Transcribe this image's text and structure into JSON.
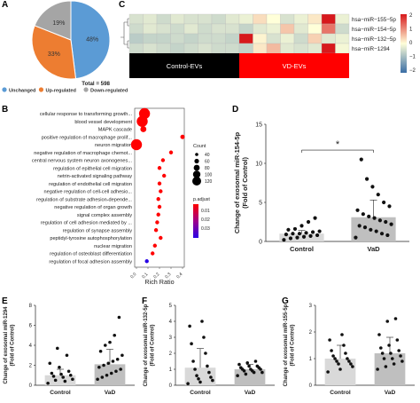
{
  "panels": {
    "A": "A",
    "B": "B",
    "C": "C",
    "D": "D",
    "E": "E",
    "F": "F",
    "G": "G"
  },
  "chart_data": [
    {
      "panel": "A",
      "type": "pie",
      "slices": [
        {
          "label": "Unchanged",
          "value": 48,
          "display": "48%",
          "color": "#5b9bd5"
        },
        {
          "label": "Up-regulated",
          "value": 33,
          "display": "33%",
          "color": "#ed7d31"
        },
        {
          "label": "Down-regulated",
          "value": 19,
          "display": "19%",
          "color": "#a5a5a5"
        }
      ],
      "total_label": "Total = 598"
    },
    {
      "panel": "C",
      "type": "heatmap",
      "rows": [
        "hsa−miR−155−5p",
        "hsa−miR−154−5p",
        "hsa−miR−132−5p",
        "hsa−miR−1294"
      ],
      "groups": [
        {
          "label": "Control-EVs",
          "color": "#000000",
          "columns": 8
        },
        {
          "label": "VD-EVs",
          "color": "#ff0000",
          "columns": 8
        }
      ],
      "values": [
        [
          -0.4,
          -0.3,
          -0.5,
          -0.3,
          -0.4,
          -0.4,
          -0.5,
          -0.3,
          -0.2,
          0.3,
          0.0,
          -0.4,
          -0.2,
          0.2,
          2.0,
          -0.2
        ],
        [
          -0.5,
          -0.3,
          -0.4,
          -0.5,
          -0.3,
          -0.5,
          -0.4,
          -0.4,
          -0.6,
          -0.3,
          -0.2,
          0.5,
          -0.3,
          0.0,
          1.2,
          -0.5
        ],
        [
          -0.7,
          -0.6,
          -0.6,
          -0.5,
          -0.6,
          -0.5,
          -0.5,
          -0.6,
          2.4,
          0.1,
          -0.4,
          -0.2,
          -0.5,
          0.4,
          -0.3,
          -0.2
        ],
        [
          -0.5,
          -0.4,
          -0.5,
          -0.6,
          -0.5,
          -0.4,
          -0.5,
          -0.5,
          -0.6,
          0.2,
          0.6,
          -0.3,
          -0.4,
          -0.3,
          2.2,
          -0.1
        ]
      ],
      "legend_ticks": [
        "2",
        "1",
        "0",
        "−1",
        "−2"
      ],
      "color_low": "#3a6ea5",
      "color_mid": "#ffffd9",
      "color_high": "#d7191c"
    },
    {
      "panel": "B",
      "type": "scatter",
      "xlabel": "Rich Ratio",
      "xticks": [
        "0.0",
        "0.1",
        "0.2",
        "0.3",
        "0.4"
      ],
      "terms": [
        {
          "term": "cellular response to transforming growth...",
          "x": 0.07,
          "count": 120,
          "p": 0.005
        },
        {
          "term": "blood vessel development",
          "x": 0.05,
          "count": 120,
          "p": 0.005
        },
        {
          "term": "MAPK cascade",
          "x": 0.06,
          "count": 60,
          "p": 0.005
        },
        {
          "term": "positive regulation of macrophage prolif...",
          "x": 0.4,
          "count": 40,
          "p": 0.005
        },
        {
          "term": "neuron migration",
          "x": 0.0,
          "count": 120,
          "p": 0.005
        },
        {
          "term": "negative regulation of macrophage chemot...",
          "x": 0.3,
          "count": 30,
          "p": 0.005
        },
        {
          "term": "central nervous system neuron axonogenes...",
          "x": 0.23,
          "count": 30,
          "p": 0.005
        },
        {
          "term": "regulation of epithelial cell migration",
          "x": 0.2,
          "count": 30,
          "p": 0.005
        },
        {
          "term": "netrin-activated signaling pathway",
          "x": 0.24,
          "count": 30,
          "p": 0.005
        },
        {
          "term": "regulation of endothelial cell migration",
          "x": 0.2,
          "count": 30,
          "p": 0.005
        },
        {
          "term": "negative regulation of cell-cell adhesio...",
          "x": 0.21,
          "count": 30,
          "p": 0.005
        },
        {
          "term": "regulation of substrate adhesion-depende...",
          "x": 0.19,
          "count": 30,
          "p": 0.005
        },
        {
          "term": "negative regulation of organ growth",
          "x": 0.2,
          "count": 30,
          "p": 0.005
        },
        {
          "term": "signal complex assembly",
          "x": 0.19,
          "count": 30,
          "p": 0.005
        },
        {
          "term": "regulation of cell adhesion mediated by ...",
          "x": 0.18,
          "count": 30,
          "p": 0.005
        },
        {
          "term": "regulation of synapse assembly",
          "x": 0.17,
          "count": 30,
          "p": 0.005
        },
        {
          "term": "peptidyl-tyrosine autophosphorylation",
          "x": 0.21,
          "count": 30,
          "p": 0.005
        },
        {
          "term": "nuclear migration",
          "x": 0.16,
          "count": 30,
          "p": 0.005
        },
        {
          "term": "regulation of osteoblast differentiation",
          "x": 0.14,
          "count": 30,
          "p": 0.005
        },
        {
          "term": "regulation of focal adhesion assembly",
          "x": 0.09,
          "count": 30,
          "p": 0.035
        }
      ],
      "count_legend": {
        "title": "Count",
        "values": [
          "40",
          "60",
          "80",
          "100",
          "120"
        ]
      },
      "p_legend": {
        "title": "p.adjust",
        "ticks": [
          "0.01",
          "0.02",
          "0.03"
        ]
      }
    },
    {
      "panel": "D",
      "type": "bar",
      "ylabel": "Change of exosomal miR-154-5p\n(Fold of Control)",
      "categories": [
        "Control",
        "VaD"
      ],
      "values": [
        1.0,
        3.1
      ],
      "errors": [
        0.4,
        2.2
      ],
      "ylim": [
        0,
        15
      ],
      "yticks": [
        "0",
        "5",
        "10",
        "15"
      ],
      "significance": "*",
      "points": [
        [
          0.2,
          0.4,
          0.5,
          0.6,
          0.7,
          0.8,
          0.9,
          1.0,
          1.0,
          1.1,
          1.2,
          1.3,
          1.5,
          1.6,
          2.0,
          2.5,
          3.0
        ],
        [
          0.5,
          0.8,
          1.0,
          1.3,
          1.5,
          1.8,
          2.0,
          2.2,
          2.5,
          2.7,
          3.0,
          3.2,
          3.5,
          4.0,
          4.5,
          5.0,
          6.0,
          7.0,
          8.0,
          10.5
        ]
      ]
    },
    {
      "panel": "E",
      "type": "bar",
      "ylabel": "Change of exosomal miR-1294\n(Fold of Control)",
      "categories": [
        "Control",
        "VaD"
      ],
      "values": [
        1.0,
        2.1
      ],
      "errors": [
        0.6,
        1.5
      ],
      "ylim": [
        0,
        8
      ],
      "yticks": [
        "0",
        "2",
        "4",
        "6",
        "8"
      ],
      "points": [
        [
          0.2,
          0.4,
          0.5,
          0.6,
          0.8,
          0.9,
          1.0,
          1.1,
          1.2,
          1.4,
          1.8,
          2.2,
          3.0,
          3.7
        ],
        [
          0.6,
          0.8,
          1.0,
          1.2,
          1.4,
          1.6,
          1.8,
          2.0,
          2.2,
          2.4,
          2.6,
          3.0,
          3.4,
          4.0,
          4.3,
          5.0,
          6.8
        ]
      ]
    },
    {
      "panel": "F",
      "type": "bar",
      "ylabel": "Change of exosomal miR-132-5p\n(Fold of Control)",
      "categories": [
        "Control",
        "VaD"
      ],
      "values": [
        1.1,
        1.0
      ],
      "errors": [
        1.2,
        0.3
      ],
      "ylim": [
        0,
        5
      ],
      "yticks": [
        "0",
        "1",
        "2",
        "3",
        "4",
        "5"
      ],
      "points": [
        [
          0.1,
          0.2,
          0.3,
          0.4,
          0.5,
          0.6,
          0.8,
          1.0,
          1.2,
          1.5,
          2.0,
          2.6,
          3.0,
          3.7,
          4.0
        ],
        [
          0.6,
          0.7,
          0.8,
          0.8,
          0.9,
          0.9,
          1.0,
          1.0,
          1.0,
          1.1,
          1.1,
          1.2,
          1.2,
          1.3,
          1.4,
          1.5
        ]
      ]
    },
    {
      "panel": "G",
      "type": "bar",
      "ylabel": "Change of exosomal miR-155-5p\n(Fold of Control)",
      "categories": [
        "Control",
        "VaD"
      ],
      "values": [
        1.0,
        1.2
      ],
      "errors": [
        0.5,
        0.6
      ],
      "ylim": [
        0,
        3
      ],
      "yticks": [
        "0",
        "1",
        "2",
        "3"
      ],
      "points": [
        [
          0.5,
          0.6,
          0.7,
          0.8,
          0.8,
          0.9,
          0.9,
          1.0,
          1.0,
          1.1,
          1.2,
          1.3,
          1.5,
          1.7,
          1.9
        ],
        [
          0.6,
          0.7,
          0.8,
          0.9,
          1.0,
          1.0,
          1.1,
          1.2,
          1.2,
          1.3,
          1.4,
          1.5,
          1.7,
          1.9,
          2.4,
          2.5
        ]
      ]
    }
  ]
}
